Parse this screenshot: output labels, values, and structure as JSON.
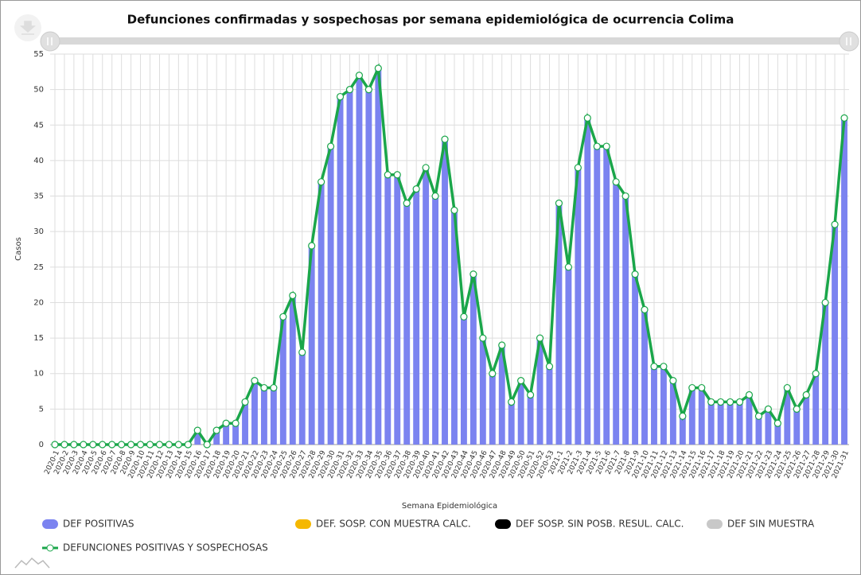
{
  "chart_data": {
    "type": "bar",
    "title": "Defunciones confirmadas y sospechosas por semana epidemiológica de ocurrencia Colima",
    "x_label": "Semana Epidemiológica",
    "y_label": "Casos",
    "categories": [
      "2020-1",
      "2020-2",
      "2020-3",
      "2020-4",
      "2020-5",
      "2020-6",
      "2020-7",
      "2020-8",
      "2020-9",
      "2020-10",
      "2020-11",
      "2020-12",
      "2020-13",
      "2020-14",
      "2020-15",
      "2020-16",
      "2020-17",
      "2020-18",
      "2020-19",
      "2020-20",
      "2020-21",
      "2020-22",
      "2020-23",
      "2020-24",
      "2020-25",
      "2020-26",
      "2020-27",
      "2020-28",
      "2020-29",
      "2020-30",
      "2020-31",
      "2020-32",
      "2020-33",
      "2020-34",
      "2020-35",
      "2020-36",
      "2020-37",
      "2020-38",
      "2020-39",
      "2020-40",
      "2020-41",
      "2020-42",
      "2020-43",
      "2020-44",
      "2020-45",
      "2020-46",
      "2020-47",
      "2020-48",
      "2020-49",
      "2020-50",
      "2020-51",
      "2020-52",
      "2020-53",
      "2021-1",
      "2021-2",
      "2021-3",
      "2021-4",
      "2021-5",
      "2021-6",
      "2021-7",
      "2021-8",
      "2021-9",
      "2021-10",
      "2021-11",
      "2021-12",
      "2021-13",
      "2021-14",
      "2021-15",
      "2021-16",
      "2021-17",
      "2021-18",
      "2021-19",
      "2021-20",
      "2021-21",
      "2021-22",
      "2021-23",
      "2021-24",
      "2021-25",
      "2021-26",
      "2021-27",
      "2021-28",
      "2021-29",
      "2021-30",
      "2021-31"
    ],
    "series": [
      {
        "name": "DEF POSITIVAS",
        "color": "#7b83f0",
        "values": [
          0,
          0,
          0,
          0,
          0,
          0,
          0,
          0,
          0,
          0,
          0,
          0,
          0,
          0,
          0,
          2,
          0,
          2,
          3,
          3,
          6,
          9,
          8,
          8,
          18,
          21,
          13,
          28,
          37,
          42,
          49,
          50,
          52,
          50,
          53,
          38,
          38,
          34,
          36,
          39,
          35,
          43,
          33,
          18,
          24,
          15,
          10,
          14,
          6,
          9,
          7,
          15,
          11,
          34,
          25,
          39,
          46,
          42,
          42,
          37,
          35,
          24,
          19,
          11,
          11,
          9,
          4,
          8,
          8,
          6,
          6,
          6,
          6,
          7,
          4,
          5,
          3,
          8,
          5,
          7,
          10,
          20,
          31,
          46
        ]
      },
      {
        "name": "DEF. SOSP. CON MUESTRA CALC.",
        "color": "#f5b800",
        "values": [
          0,
          0,
          0,
          0,
          0,
          0,
          0,
          0,
          0,
          0,
          0,
          0,
          0,
          0,
          0,
          0,
          0,
          0,
          0,
          0,
          0,
          0,
          0,
          0,
          0,
          0,
          0,
          0,
          0,
          0,
          0,
          0,
          0,
          0,
          0,
          0,
          0,
          0,
          0,
          0,
          0,
          0,
          0,
          0,
          0,
          0,
          0,
          0,
          0,
          0,
          0,
          0,
          0,
          0,
          0,
          0,
          0,
          0,
          0,
          0,
          0,
          0,
          0,
          0,
          0,
          0,
          0,
          0,
          0,
          0,
          0,
          0,
          0,
          0,
          0,
          0,
          0,
          0,
          0,
          0,
          0,
          0,
          0,
          0
        ]
      },
      {
        "name": "DEF SOSP. SIN POSB. RESUL. CALC.",
        "color": "#000000",
        "values": [
          0,
          0,
          0,
          0,
          0,
          0,
          0,
          0,
          0,
          0,
          0,
          0,
          0,
          0,
          0,
          0,
          0,
          0,
          0,
          0,
          0,
          0,
          0,
          0,
          0,
          0,
          0,
          0,
          0,
          0,
          0,
          0,
          0,
          0,
          0,
          0,
          0,
          0,
          0,
          0,
          0,
          0,
          0,
          0,
          0,
          0,
          0,
          0,
          0,
          0,
          0,
          0,
          0,
          0,
          0,
          0,
          0,
          0,
          0,
          0,
          0,
          0,
          0,
          0,
          0,
          0,
          0,
          0,
          0,
          0,
          0,
          0,
          0,
          0,
          0,
          0,
          0,
          0,
          0,
          0,
          0,
          0,
          0,
          0
        ]
      },
      {
        "name": "DEF SIN MUESTRA",
        "color": "#c8c8c8",
        "values": [
          0,
          0,
          0,
          0,
          0,
          0,
          0,
          0,
          0,
          0,
          0,
          0,
          0,
          0,
          0,
          0,
          0,
          0,
          0,
          0,
          0,
          0,
          0,
          0,
          0,
          0,
          0,
          0,
          0,
          0,
          0,
          0,
          0,
          0,
          0,
          0,
          0,
          0,
          0,
          0,
          0,
          0,
          0,
          0,
          0,
          0,
          0,
          0,
          0,
          0,
          0,
          0,
          0,
          0,
          0,
          0,
          0,
          0,
          0,
          0,
          0,
          0,
          0,
          0,
          0,
          0,
          0,
          0,
          0,
          0,
          0,
          0,
          0,
          0,
          0,
          0,
          0,
          0,
          0,
          0,
          0,
          0,
          0,
          0
        ]
      },
      {
        "name": "DEFUNCIONES POSITIVAS Y SOSPECHOSAS",
        "color": "#1aa64a",
        "type": "line",
        "values": [
          0,
          0,
          0,
          0,
          0,
          0,
          0,
          0,
          0,
          0,
          0,
          0,
          0,
          0,
          0,
          2,
          0,
          2,
          3,
          3,
          6,
          9,
          8,
          8,
          18,
          21,
          13,
          28,
          37,
          42,
          49,
          50,
          52,
          50,
          53,
          38,
          38,
          34,
          36,
          39,
          35,
          43,
          33,
          18,
          24,
          15,
          10,
          14,
          6,
          9,
          7,
          15,
          11,
          34,
          25,
          39,
          46,
          42,
          42,
          37,
          35,
          24,
          19,
          11,
          11,
          9,
          4,
          8,
          8,
          6,
          6,
          6,
          6,
          7,
          4,
          5,
          3,
          8,
          5,
          7,
          10,
          20,
          31,
          46
        ]
      }
    ],
    "ylim": [
      0,
      55
    ],
    "yticks": [
      0,
      5,
      10,
      15,
      20,
      25,
      30,
      35,
      40,
      45,
      50,
      55
    ],
    "grid": true
  }
}
